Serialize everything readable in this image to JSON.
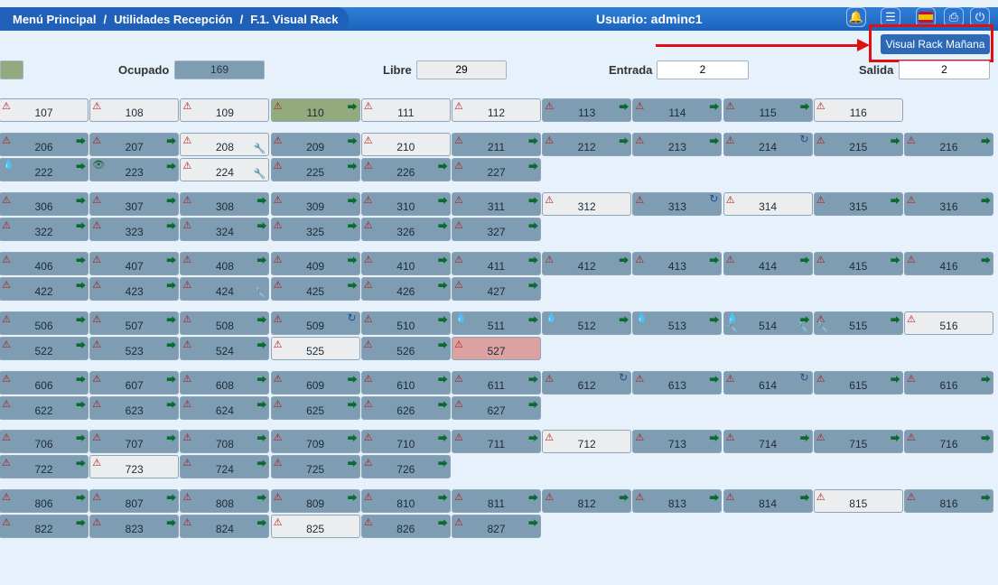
{
  "breadcrumbs": [
    "Menú Principal",
    "Utilidades Recepción",
    "F.1. Visual Rack"
  ],
  "user_label": "Usuario: adminc1",
  "visual_rack_manana_label": "Visual Rack Mañana",
  "stats": {
    "ocupado_label": "Ocupado",
    "ocupado_value": "169",
    "libre_label": "Libre",
    "libre_value": "29",
    "entrada_label": "Entrada",
    "entrada_value": "2",
    "salida_label": "Salida",
    "salida_value": "2"
  },
  "legend_colors": {
    "occupied": "#7e9db3",
    "free": "#ebedef",
    "check_in": "#93a97e",
    "dirty": "#dca1a1"
  },
  "rows": [
    [
      {
        "n": "107",
        "s": "free",
        "w": 1
      },
      {
        "n": "108",
        "s": "free",
        "w": 1
      },
      {
        "n": "109",
        "s": "free",
        "w": 1
      },
      {
        "n": "110",
        "s": "in",
        "w": 1,
        "e": 1
      },
      {
        "n": "111",
        "s": "free",
        "w": 1
      },
      {
        "n": "112",
        "s": "free",
        "w": 1
      },
      {
        "n": "113",
        "s": "occ",
        "w": 1,
        "e": 1
      },
      {
        "n": "114",
        "s": "occ",
        "w": 1,
        "e": 1
      },
      {
        "n": "115",
        "s": "occ",
        "w": 1,
        "e": 1
      },
      {
        "n": "116",
        "s": "free",
        "w": 1
      }
    ],
    [
      {
        "n": "206",
        "s": "occ",
        "w": 1,
        "e": 1
      },
      {
        "n": "207",
        "s": "occ",
        "w": 1,
        "e": 1
      },
      {
        "n": "208",
        "s": "free",
        "w": 1,
        "r": 1
      },
      {
        "n": "209",
        "s": "occ",
        "w": 1,
        "e": 1
      },
      {
        "n": "210",
        "s": "free",
        "w": 1
      },
      {
        "n": "211",
        "s": "occ",
        "w": 1,
        "e": 1
      },
      {
        "n": "212",
        "s": "occ",
        "w": 1,
        "e": 1
      },
      {
        "n": "213",
        "s": "occ",
        "w": 1,
        "e": 1
      },
      {
        "n": "214",
        "s": "occ",
        "w": 1,
        "c": 1
      },
      {
        "n": "215",
        "s": "occ",
        "w": 1,
        "e": 1
      },
      {
        "n": "216",
        "s": "occ",
        "w": 1,
        "e": 1
      }
    ],
    [
      {
        "n": "222",
        "s": "occ",
        "d": 1,
        "e": 1
      },
      {
        "n": "223",
        "s": "occ",
        "v": 1,
        "e": 1
      },
      {
        "n": "224",
        "s": "free",
        "w": 1,
        "r": 1
      },
      {
        "n": "225",
        "s": "occ",
        "w": 1,
        "e": 1
      },
      {
        "n": "226",
        "s": "occ",
        "w": 1,
        "e": 1
      },
      {
        "n": "227",
        "s": "occ",
        "w": 1,
        "e": 1
      }
    ],
    [
      {
        "n": "306",
        "s": "occ",
        "w": 1,
        "e": 1
      },
      {
        "n": "307",
        "s": "occ",
        "w": 1,
        "e": 1
      },
      {
        "n": "308",
        "s": "occ",
        "w": 1,
        "e": 1
      },
      {
        "n": "309",
        "s": "occ",
        "w": 1,
        "e": 1
      },
      {
        "n": "310",
        "s": "occ",
        "w": 1,
        "e": 1
      },
      {
        "n": "311",
        "s": "occ",
        "w": 1,
        "e": 1
      },
      {
        "n": "312",
        "s": "free",
        "w": 1
      },
      {
        "n": "313",
        "s": "occ",
        "w": 1,
        "c": 1
      },
      {
        "n": "314",
        "s": "free",
        "w": 1
      },
      {
        "n": "315",
        "s": "occ",
        "w": 1,
        "e": 1
      },
      {
        "n": "316",
        "s": "occ",
        "w": 1,
        "e": 1
      }
    ],
    [
      {
        "n": "322",
        "s": "occ",
        "w": 1,
        "e": 1
      },
      {
        "n": "323",
        "s": "occ",
        "w": 1,
        "e": 1
      },
      {
        "n": "324",
        "s": "occ",
        "w": 1,
        "e": 1
      },
      {
        "n": "325",
        "s": "occ",
        "w": 1,
        "e": 1
      },
      {
        "n": "326",
        "s": "occ",
        "w": 1,
        "e": 1
      },
      {
        "n": "327",
        "s": "occ",
        "w": 1,
        "e": 1
      }
    ],
    [
      {
        "n": "406",
        "s": "occ",
        "w": 1,
        "e": 1
      },
      {
        "n": "407",
        "s": "occ",
        "w": 1,
        "e": 1
      },
      {
        "n": "408",
        "s": "occ",
        "w": 1,
        "e": 1
      },
      {
        "n": "409",
        "s": "occ",
        "w": 1,
        "e": 1
      },
      {
        "n": "410",
        "s": "occ",
        "w": 1,
        "e": 1
      },
      {
        "n": "411",
        "s": "occ",
        "w": 1,
        "e": 1
      },
      {
        "n": "412",
        "s": "occ",
        "w": 1,
        "e": 1
      },
      {
        "n": "413",
        "s": "occ",
        "w": 1,
        "e": 1
      },
      {
        "n": "414",
        "s": "occ",
        "w": 1,
        "e": 1
      },
      {
        "n": "415",
        "s": "occ",
        "w": 1,
        "e": 1
      },
      {
        "n": "416",
        "s": "occ",
        "w": 1,
        "e": 1
      }
    ],
    [
      {
        "n": "422",
        "s": "occ",
        "w": 1,
        "e": 1
      },
      {
        "n": "423",
        "s": "occ",
        "w": 1,
        "e": 1
      },
      {
        "n": "424",
        "s": "occ",
        "w": 1,
        "r": 1
      },
      {
        "n": "425",
        "s": "occ",
        "w": 1,
        "e": 1
      },
      {
        "n": "426",
        "s": "occ",
        "w": 1,
        "e": 1
      },
      {
        "n": "427",
        "s": "occ",
        "w": 1,
        "e": 1
      }
    ],
    [
      {
        "n": "506",
        "s": "occ",
        "w": 1,
        "e": 1
      },
      {
        "n": "507",
        "s": "occ",
        "w": 1,
        "e": 1
      },
      {
        "n": "508",
        "s": "occ",
        "w": 1,
        "e": 1
      },
      {
        "n": "509",
        "s": "occ",
        "w": 1,
        "c": 1
      },
      {
        "n": "510",
        "s": "occ",
        "w": 1,
        "e": 1
      },
      {
        "n": "511",
        "s": "occ",
        "d": 1,
        "e": 1
      },
      {
        "n": "512",
        "s": "occ",
        "d": 1,
        "e": 1
      },
      {
        "n": "513",
        "s": "occ",
        "d": 1,
        "e": 1
      },
      {
        "n": "514",
        "s": "occ",
        "d": 1,
        "e": 1,
        "r": 1,
        "b": 1
      },
      {
        "n": "515",
        "s": "occ",
        "w": 1,
        "e": 1,
        "b": 1
      },
      {
        "n": "516",
        "s": "free",
        "w": 1
      }
    ],
    [
      {
        "n": "522",
        "s": "occ",
        "w": 1,
        "e": 1
      },
      {
        "n": "523",
        "s": "occ",
        "w": 1,
        "e": 1
      },
      {
        "n": "524",
        "s": "occ",
        "w": 1,
        "e": 1
      },
      {
        "n": "525",
        "s": "free",
        "w": 1
      },
      {
        "n": "526",
        "s": "occ",
        "w": 1,
        "e": 1
      },
      {
        "n": "527",
        "s": "dirty",
        "w": 1
      }
    ],
    [
      {
        "n": "606",
        "s": "occ",
        "w": 1,
        "e": 1
      },
      {
        "n": "607",
        "s": "occ",
        "w": 1,
        "e": 1
      },
      {
        "n": "608",
        "s": "occ",
        "w": 1,
        "e": 1
      },
      {
        "n": "609",
        "s": "occ",
        "w": 1,
        "e": 1
      },
      {
        "n": "610",
        "s": "occ",
        "w": 1,
        "e": 1
      },
      {
        "n": "611",
        "s": "occ",
        "w": 1,
        "e": 1
      },
      {
        "n": "612",
        "s": "occ",
        "w": 1,
        "c": 1
      },
      {
        "n": "613",
        "s": "occ",
        "w": 1,
        "e": 1
      },
      {
        "n": "614",
        "s": "occ",
        "w": 1,
        "c": 1
      },
      {
        "n": "615",
        "s": "occ",
        "w": 1,
        "e": 1
      },
      {
        "n": "616",
        "s": "occ",
        "w": 1,
        "e": 1
      }
    ],
    [
      {
        "n": "622",
        "s": "occ",
        "w": 1,
        "e": 1
      },
      {
        "n": "623",
        "s": "occ",
        "w": 1,
        "e": 1
      },
      {
        "n": "624",
        "s": "occ",
        "w": 1,
        "e": 1
      },
      {
        "n": "625",
        "s": "occ",
        "w": 1,
        "e": 1
      },
      {
        "n": "626",
        "s": "occ",
        "w": 1,
        "e": 1
      },
      {
        "n": "627",
        "s": "occ",
        "w": 1,
        "e": 1
      }
    ],
    [
      {
        "n": "706",
        "s": "occ",
        "w": 1,
        "e": 1
      },
      {
        "n": "707",
        "s": "occ",
        "w": 1,
        "e": 1
      },
      {
        "n": "708",
        "s": "occ",
        "w": 1,
        "e": 1
      },
      {
        "n": "709",
        "s": "occ",
        "w": 1,
        "e": 1
      },
      {
        "n": "710",
        "s": "occ",
        "w": 1,
        "e": 1
      },
      {
        "n": "711",
        "s": "occ",
        "w": 1,
        "e": 1
      },
      {
        "n": "712",
        "s": "free",
        "w": 1
      },
      {
        "n": "713",
        "s": "occ",
        "w": 1,
        "e": 1
      },
      {
        "n": "714",
        "s": "occ",
        "w": 1,
        "e": 1
      },
      {
        "n": "715",
        "s": "occ",
        "w": 1,
        "e": 1
      },
      {
        "n": "716",
        "s": "occ",
        "w": 1,
        "e": 1
      }
    ],
    [
      {
        "n": "722",
        "s": "occ",
        "w": 1,
        "e": 1
      },
      {
        "n": "723",
        "s": "free",
        "w": 1
      },
      {
        "n": "724",
        "s": "occ",
        "w": 1,
        "e": 1
      },
      {
        "n": "725",
        "s": "occ",
        "w": 1,
        "e": 1
      },
      {
        "n": "726",
        "s": "occ",
        "w": 1,
        "e": 1
      }
    ],
    [
      {
        "n": "806",
        "s": "occ",
        "w": 1,
        "e": 1
      },
      {
        "n": "807",
        "s": "occ",
        "w": 1,
        "e": 1
      },
      {
        "n": "808",
        "s": "occ",
        "w": 1,
        "e": 1
      },
      {
        "n": "809",
        "s": "occ",
        "w": 1,
        "e": 1
      },
      {
        "n": "810",
        "s": "occ",
        "w": 1,
        "e": 1
      },
      {
        "n": "811",
        "s": "occ",
        "w": 1,
        "e": 1
      },
      {
        "n": "812",
        "s": "occ",
        "w": 1,
        "e": 1
      },
      {
        "n": "813",
        "s": "occ",
        "w": 1,
        "e": 1
      },
      {
        "n": "814",
        "s": "occ",
        "w": 1,
        "e": 1
      },
      {
        "n": "815",
        "s": "free",
        "w": 1
      },
      {
        "n": "816",
        "s": "occ",
        "w": 1,
        "e": 1
      }
    ],
    [
      {
        "n": "822",
        "s": "occ",
        "w": 1,
        "e": 1
      },
      {
        "n": "823",
        "s": "occ",
        "w": 1,
        "e": 1
      },
      {
        "n": "824",
        "s": "occ",
        "w": 1,
        "e": 1
      },
      {
        "n": "825",
        "s": "free",
        "w": 1
      },
      {
        "n": "826",
        "s": "occ",
        "w": 1,
        "e": 1
      },
      {
        "n": "827",
        "s": "occ",
        "w": 1,
        "e": 1
      }
    ]
  ]
}
